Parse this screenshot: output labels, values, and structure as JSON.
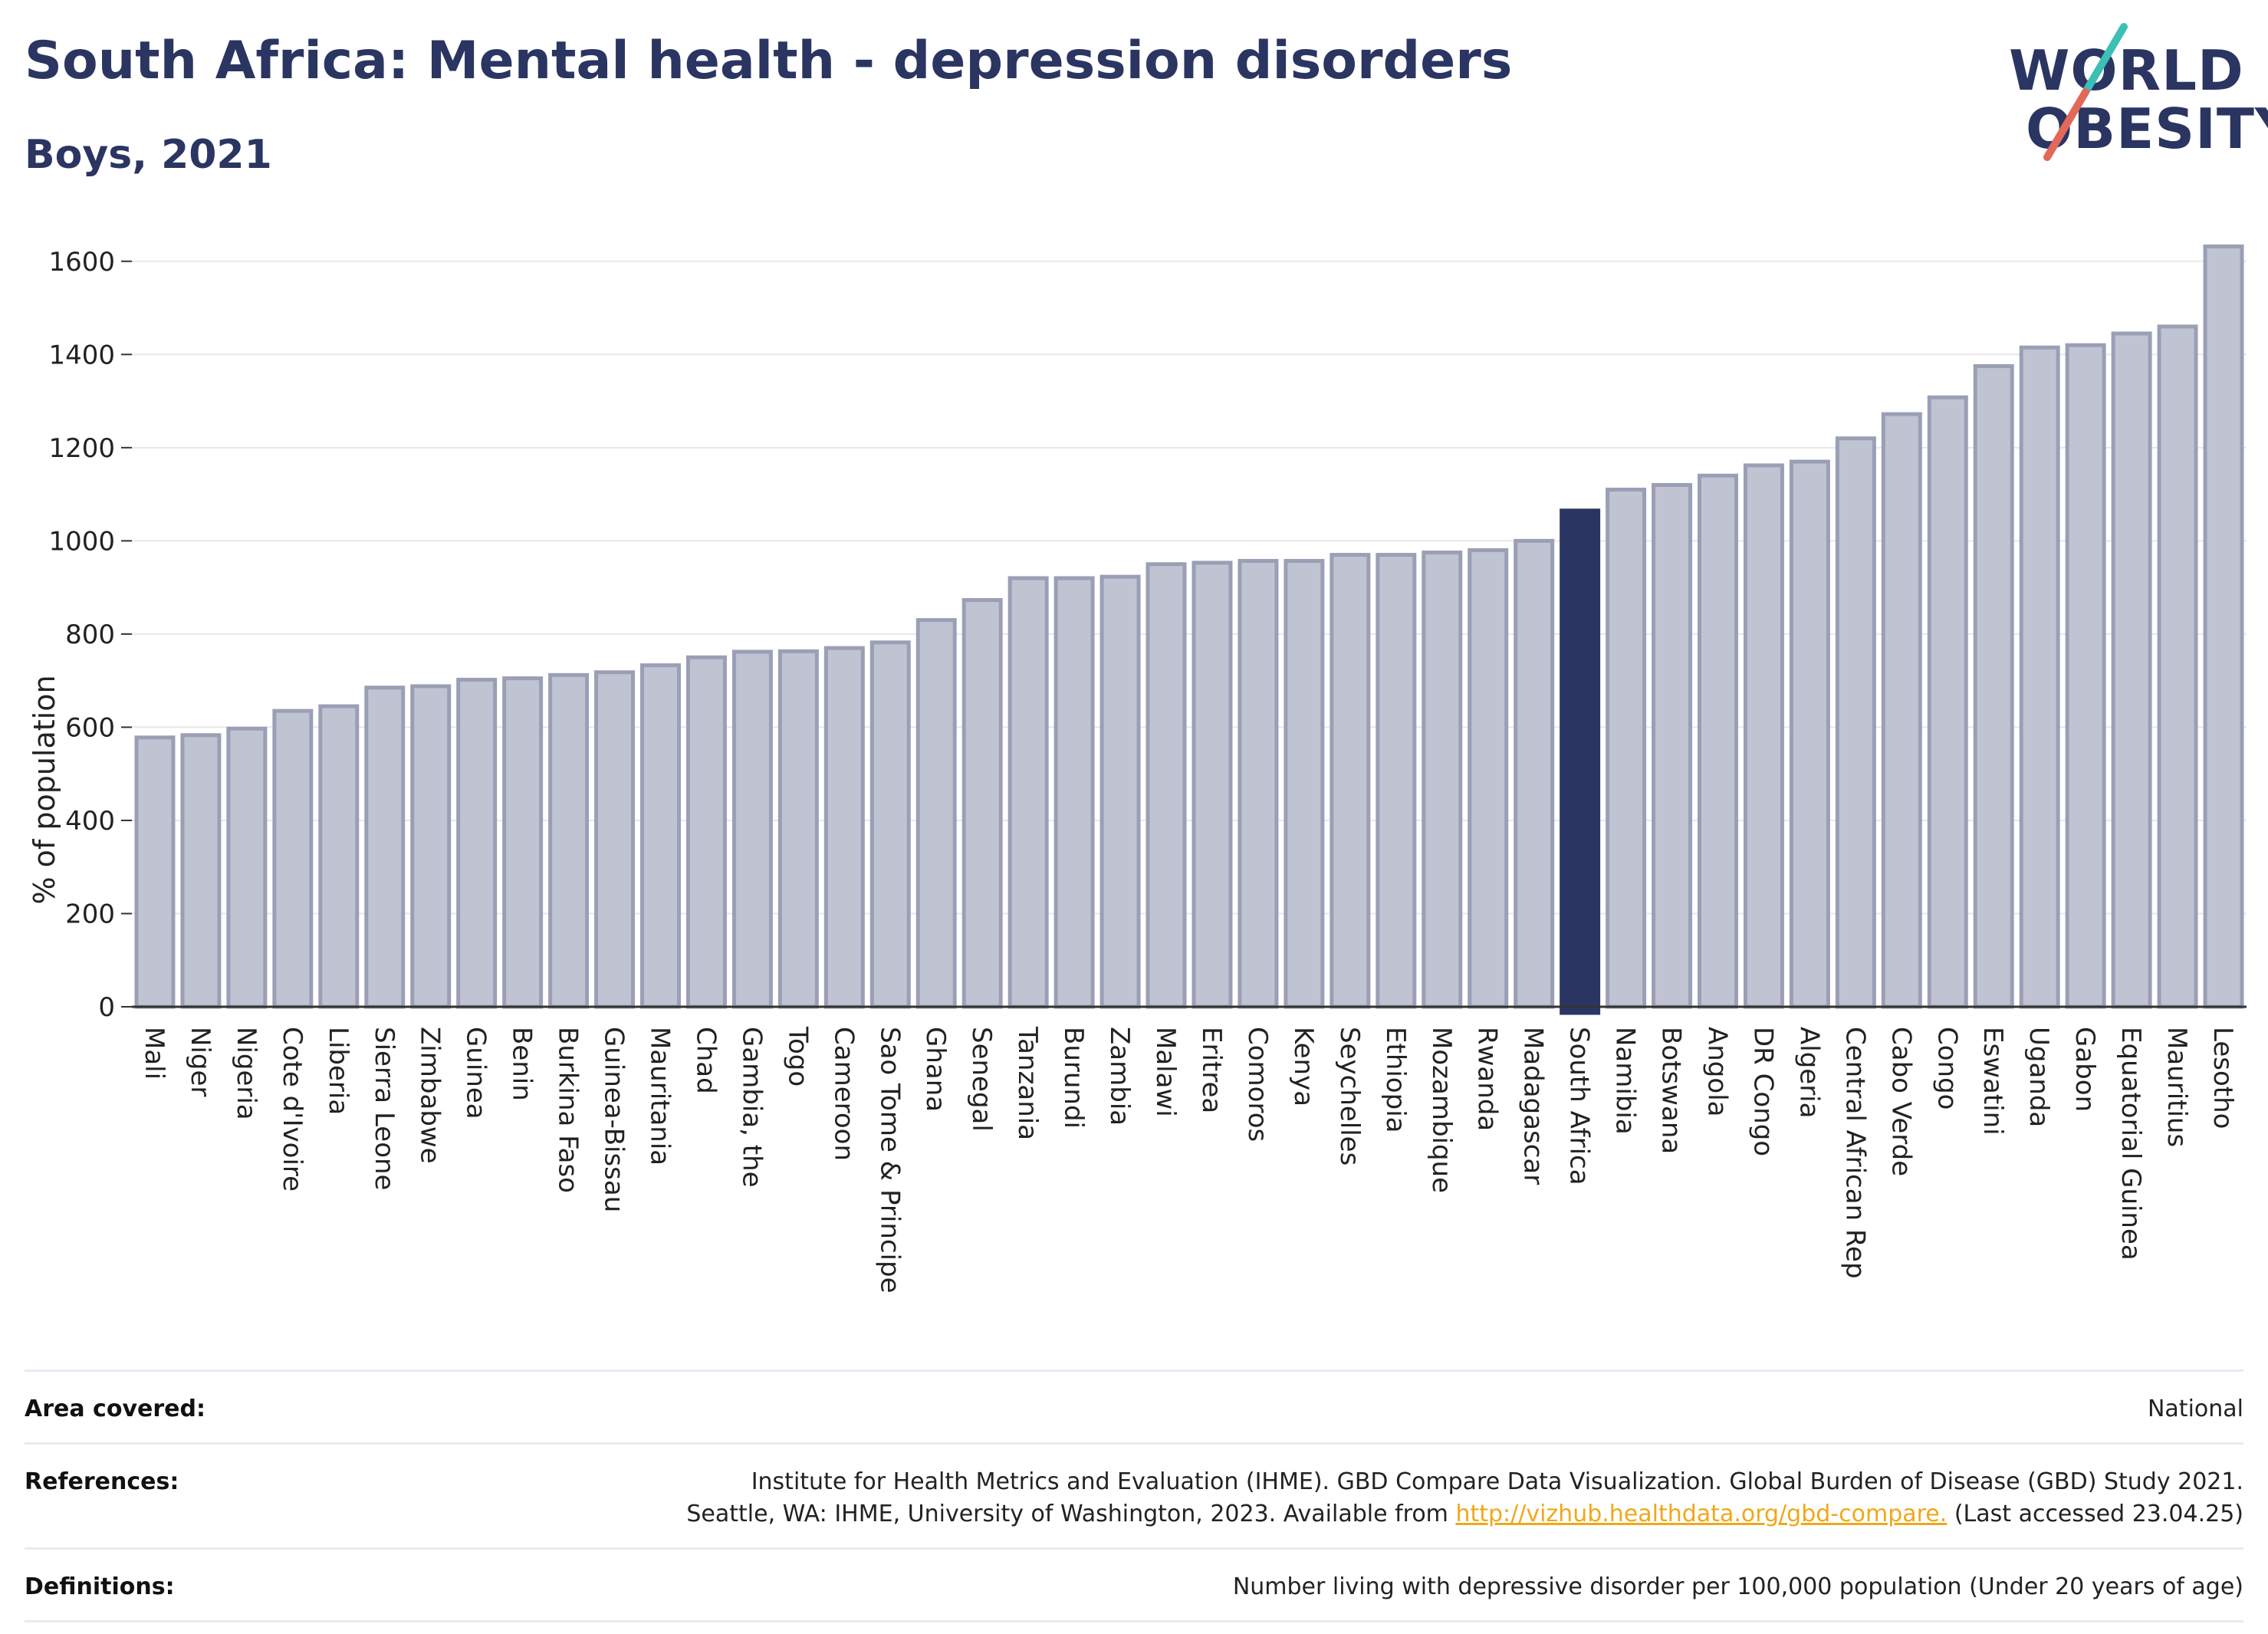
{
  "header": {
    "title": "South Africa: Mental health - depression disorders",
    "subtitle": "Boys, 2021",
    "logo": {
      "line1": "WORLD",
      "line2": "OBESITY"
    }
  },
  "colors": {
    "bar": "#c0c3d1",
    "bar_border": "#9a9fb6",
    "highlight": "#2b3562",
    "grid": "#e7e7ee",
    "accent_teal": "#3cbfb4",
    "accent_coral": "#e2685a"
  },
  "chart_data": {
    "type": "bar",
    "ylabel": "% of population",
    "ylim": [
      0,
      1700
    ],
    "yticks": [
      0,
      200,
      400,
      600,
      800,
      1000,
      1200,
      1400,
      1600
    ],
    "grid": true,
    "highlight": "South Africa",
    "categories": [
      "Mali",
      "Niger",
      "Nigeria",
      "Cote d'Ivoire",
      "Liberia",
      "Sierra Leone",
      "Zimbabwe",
      "Guinea",
      "Benin",
      "Burkina Faso",
      "Guinea-Bissau",
      "Mauritania",
      "Chad",
      "Gambia, the",
      "Togo",
      "Cameroon",
      "Sao Tome & Principe",
      "Ghana",
      "Senegal",
      "Tanzania",
      "Burundi",
      "Zambia",
      "Malawi",
      "Eritrea",
      "Comoros",
      "Kenya",
      "Seychelles",
      "Ethiopia",
      "Mozambique",
      "Rwanda",
      "Madagascar",
      "South Africa",
      "Namibia",
      "Botswana",
      "Angola",
      "DR Congo",
      "Algeria",
      "Central African Rep",
      "Cabo Verde",
      "Congo",
      "Eswatini",
      "Uganda",
      "Gabon",
      "Equatorial Guinea",
      "Mauritius",
      "Lesotho"
    ],
    "values": [
      578,
      583,
      597,
      635,
      645,
      685,
      688,
      702,
      705,
      712,
      718,
      733,
      750,
      762,
      763,
      770,
      782,
      830,
      873,
      920,
      920,
      923,
      950,
      953,
      957,
      957,
      970,
      970,
      975,
      980,
      1000,
      1065,
      1110,
      1120,
      1140,
      1162,
      1170,
      1220,
      1272,
      1308,
      1375,
      1415,
      1420,
      1445,
      1460,
      1632
    ]
  },
  "footer": {
    "area_label": "Area covered:",
    "area_value": "National",
    "refs_label": "References:",
    "refs_line1": "Institute for Health Metrics and Evaluation (IHME). GBD Compare Data Visualization. Global Burden of Disease (GBD) Study 2021.",
    "refs_line2_pre": "Seattle, WA: IHME, University of Washington, 2023. Available from ",
    "refs_link": "http://vizhub.healthdata.org/gbd-compare.",
    "refs_line2_post": " (Last accessed 23.04.25)",
    "defs_label": "Definitions:",
    "defs_value": "Number living with depressive disorder per 100,000 population (Under 20 years of age)"
  }
}
